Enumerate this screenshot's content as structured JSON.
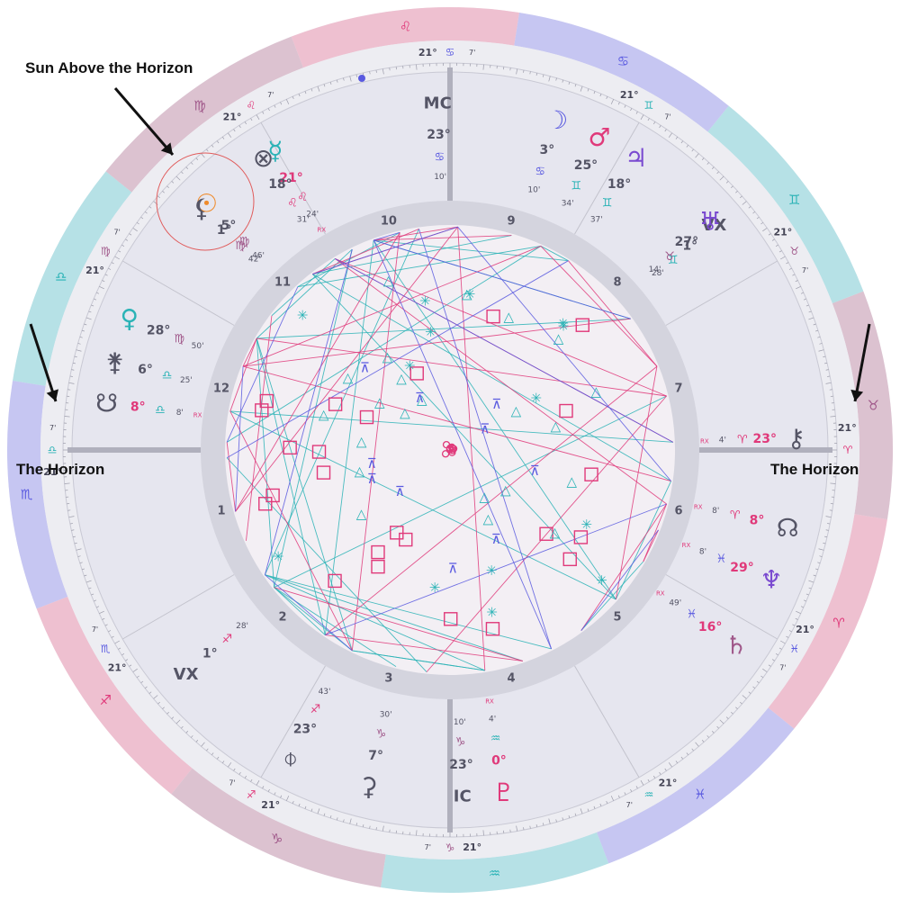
{
  "annotations": {
    "sun_above": "Sun Above the Horizon",
    "horizon_left": "The Horizon",
    "horizon_right": "The Horizon"
  },
  "colors": {
    "fire": "#eec0d0",
    "earth": "#dcc2d0",
    "air": "#b6e1e6",
    "water": "#c6c6f2",
    "inner_bg": "#e6e6ef",
    "ring_bg": "#ededf2",
    "house_band": "#d4d4de",
    "axis": "#b0b0bd",
    "red": "#e0397a",
    "teal": "#2bb3b6",
    "blue": "#5a5ae0",
    "purple": "#7a4ad0",
    "dark": "#555566",
    "sun": "#ef8b2c"
  },
  "signs": [
    {
      "name": "aries",
      "glyph": "♈",
      "color": "#e0397a",
      "band": "#eec0d0"
    },
    {
      "name": "taurus",
      "glyph": "♉",
      "color": "#a0588a",
      "band": "#dcc2d0"
    },
    {
      "name": "gemini",
      "glyph": "♊",
      "color": "#2bb3b6",
      "band": "#b6e1e6"
    },
    {
      "name": "cancer",
      "glyph": "♋",
      "color": "#5a5ae0",
      "band": "#c6c6f2"
    },
    {
      "name": "leo",
      "glyph": "♌",
      "color": "#e0397a",
      "band": "#eec0d0"
    },
    {
      "name": "virgo",
      "glyph": "♍",
      "color": "#a0588a",
      "band": "#dcc2d0"
    },
    {
      "name": "libra",
      "glyph": "♎",
      "color": "#2bb3b6",
      "band": "#b6e1e6"
    },
    {
      "name": "scorpio",
      "glyph": "♏",
      "color": "#5a5ae0",
      "band": "#c6c6f2"
    },
    {
      "name": "sagittarius",
      "glyph": "♐",
      "color": "#e0397a",
      "band": "#eec0d0"
    },
    {
      "name": "capricorn",
      "glyph": "♑",
      "color": "#a0588a",
      "band": "#dcc2d0"
    },
    {
      "name": "aquarius",
      "glyph": "♒",
      "color": "#2bb3b6",
      "band": "#b6e1e6"
    },
    {
      "name": "pisces",
      "glyph": "♓",
      "color": "#5a5ae0",
      "band": "#c6c6f2"
    }
  ],
  "cusp_label": {
    "deg": "21°",
    "min": "7'"
  },
  "houses": [
    "1",
    "2",
    "3",
    "4",
    "5",
    "6",
    "7",
    "8",
    "9",
    "10",
    "11",
    "12"
  ],
  "angles": {
    "mc": "MC",
    "ic": "IC"
  },
  "points": [
    {
      "id": "mc",
      "glyph": "MC",
      "sign": "cancer",
      "deg": "23°",
      "min": "10'",
      "gc": "#555566",
      "dc": "#555566",
      "rx": ""
    },
    {
      "id": "moon",
      "glyph": "☽",
      "sign": "cancer",
      "deg": "3°",
      "min": "10'",
      "gc": "#5a5ae0",
      "dc": "#555566",
      "rx": ""
    },
    {
      "id": "mars",
      "glyph": "♂",
      "sign": "gemini",
      "deg": "25°",
      "min": "34'",
      "gc": "#e0397a",
      "dc": "#555566",
      "rx": ""
    },
    {
      "id": "jupiter",
      "glyph": "♃",
      "sign": "gemini",
      "deg": "18°",
      "min": "37'",
      "gc": "#7a4ad0",
      "dc": "#555566",
      "rx": ""
    },
    {
      "id": "vertex",
      "glyph": "VX",
      "sign": "gemini",
      "deg": "1°",
      "min": "28'",
      "gc": "#555566",
      "dc": "#555566",
      "rx": ""
    },
    {
      "id": "uranus",
      "glyph": "♅",
      "sign": "taurus",
      "deg": "27°",
      "min": "14'",
      "gc": "#7a4ad0",
      "dc": "#555566",
      "rx": ""
    },
    {
      "id": "chiron",
      "glyph": "⚷",
      "sign": "aries",
      "deg": "23°",
      "min": "4'",
      "gc": "#555566",
      "dc": "#e0397a",
      "rx": "RX"
    },
    {
      "id": "northnode",
      "glyph": "☊",
      "sign": "aries",
      "deg": "8°",
      "min": "8'",
      "gc": "#555566",
      "dc": "#e0397a",
      "rx": "RX"
    },
    {
      "id": "neptune",
      "glyph": "♆",
      "sign": "pisces",
      "deg": "29°",
      "min": "8'",
      "gc": "#7a4ad0",
      "dc": "#e0397a",
      "rx": "RX"
    },
    {
      "id": "saturn",
      "glyph": "♄",
      "sign": "pisces",
      "deg": "16°",
      "min": "49'",
      "gc": "#a0588a",
      "dc": "#e0397a",
      "rx": "RX"
    },
    {
      "id": "ic",
      "glyph": "IC",
      "sign": "capricorn",
      "deg": "23°",
      "min": "10'",
      "gc": "#555566",
      "dc": "#555566",
      "rx": ""
    },
    {
      "id": "pluto",
      "glyph": "♇",
      "sign": "aquarius",
      "deg": "0°",
      "min": "4'",
      "gc": "#e0397a",
      "dc": "#e0397a",
      "rx": "RX"
    },
    {
      "id": "ceres",
      "glyph": "⚳",
      "sign": "capricorn",
      "deg": "7°",
      "min": "30'",
      "gc": "#555566",
      "dc": "#555566",
      "rx": ""
    },
    {
      "id": "fortune",
      "glyph": "⌽",
      "sign": "sagittarius",
      "deg": "23°",
      "min": "43'",
      "gc": "#555566",
      "dc": "#555566",
      "rx": ""
    },
    {
      "id": "antivertex",
      "glyph": "VX",
      "sign": "sagittarius",
      "deg": "1°",
      "min": "28'",
      "gc": "#555566",
      "dc": "#555566",
      "rx": ""
    },
    {
      "id": "venus",
      "glyph": "♀",
      "sign": "virgo",
      "deg": "28°",
      "min": "50'",
      "gc": "#2bb3b6",
      "dc": "#555566",
      "rx": ""
    },
    {
      "id": "juno",
      "glyph": "⚵",
      "sign": "libra",
      "deg": "6°",
      "min": "25'",
      "gc": "#555566",
      "dc": "#555566",
      "rx": ""
    },
    {
      "id": "southnode",
      "glyph": "☋",
      "sign": "libra",
      "deg": "8°",
      "min": "8'",
      "gc": "#555566",
      "dc": "#e0397a",
      "rx": "RX"
    },
    {
      "id": "sun",
      "glyph": "☉",
      "sign": "virgo",
      "deg": "5°",
      "min": "46'",
      "gc": "#ef8b2c",
      "dc": "#555566",
      "rx": ""
    },
    {
      "id": "lilith",
      "glyph": "⚸",
      "sign": "virgo",
      "deg": "1°",
      "min": "42'",
      "gc": "#555566",
      "dc": "#555566",
      "rx": ""
    },
    {
      "id": "mercury",
      "glyph": "☿",
      "sign": "leo",
      "deg": "21°",
      "min": "24'",
      "gc": "#2bb3b6",
      "dc": "#e0397a",
      "rx": "RX"
    },
    {
      "id": "xpoint",
      "glyph": "⊗",
      "sign": "leo",
      "deg": "18°",
      "min": "31'",
      "gc": "#555566",
      "dc": "#555566",
      "rx": ""
    }
  ],
  "aspects": {
    "counts": {
      "teal": 34,
      "red": 30,
      "blue": 14
    },
    "square_count": 24,
    "trine_count": 22,
    "sextile_count": 14,
    "quincunx_count": 10
  }
}
